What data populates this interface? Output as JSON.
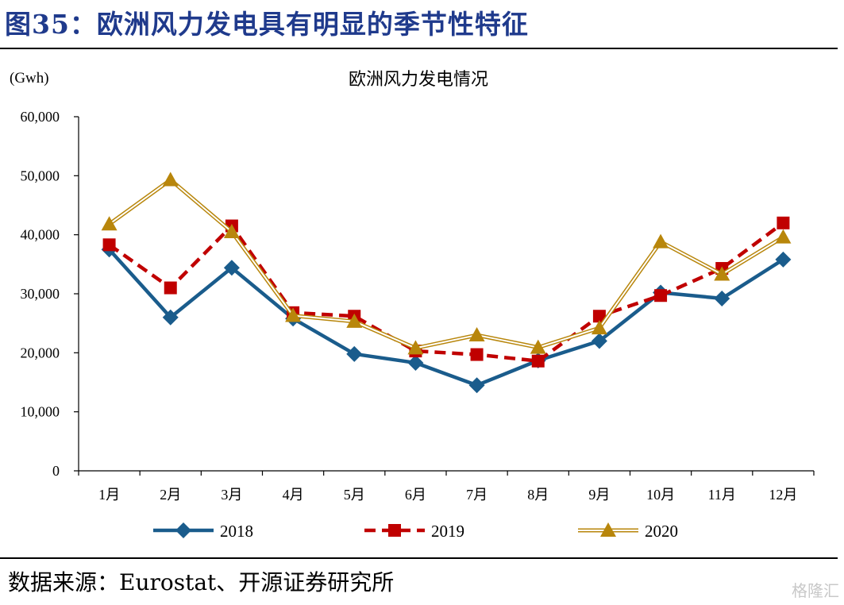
{
  "header": {
    "title": "图35：欧洲风力发电具有明显的季节性特征"
  },
  "footer": {
    "source": "数据来源：Eurostat、开源证券研究所",
    "watermark": "格隆汇"
  },
  "chart_data": {
    "type": "line",
    "title": "欧洲风力发电情况",
    "unit_label": "(Gwh)",
    "xlabel": "",
    "ylabel": "",
    "categories": [
      "1月",
      "2月",
      "3月",
      "4月",
      "5月",
      "6月",
      "7月",
      "8月",
      "9月",
      "10月",
      "11月",
      "12月"
    ],
    "ylim": [
      0,
      60000
    ],
    "yticks": [
      0,
      10000,
      20000,
      30000,
      40000,
      50000,
      60000
    ],
    "ytick_labels": [
      "0",
      "10,000",
      "20,000",
      "30,000",
      "40,000",
      "50,000",
      "60,000"
    ],
    "grid": false,
    "legend_position": "bottom",
    "series": [
      {
        "name": "2018",
        "color": "#1a5c8c",
        "marker": "diamond",
        "style": "solid",
        "values": [
          37500,
          26000,
          34400,
          25800,
          19800,
          18300,
          14500,
          18700,
          22000,
          30200,
          29200,
          35800
        ]
      },
      {
        "name": "2019",
        "color": "#c00000",
        "marker": "square",
        "style": "dashed",
        "values": [
          38300,
          31000,
          41500,
          26800,
          26200,
          20300,
          19700,
          18600,
          26200,
          29700,
          34300,
          42000
        ]
      },
      {
        "name": "2020",
        "color": "#b8860b",
        "marker": "triangle",
        "style": "double",
        "values": [
          41800,
          49300,
          40500,
          26300,
          25300,
          20800,
          23000,
          20900,
          24200,
          38800,
          33300,
          39600
        ]
      }
    ]
  }
}
